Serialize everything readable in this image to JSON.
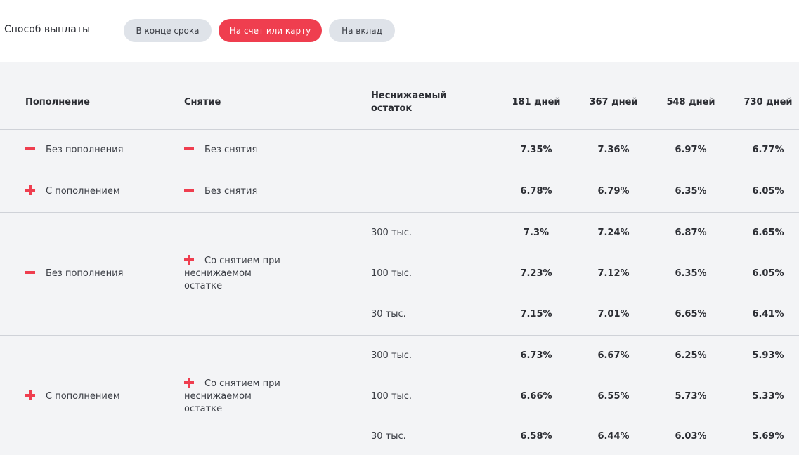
{
  "payout": {
    "label": "Способ выплаты",
    "options": [
      {
        "label": "В конце срока",
        "active": false
      },
      {
        "label": "На счет или карту",
        "active": true
      },
      {
        "label": "На вклад",
        "active": false
      }
    ]
  },
  "colors": {
    "accent": "#ef3e4f",
    "pill_inactive": "#dfe3e9",
    "table_bg": "#f3f4f6"
  },
  "table": {
    "headers": {
      "topup": "Пополнение",
      "withdraw": "Снятие",
      "min_balance_1": "Неснижаемый",
      "min_balance_2": "остаток",
      "terms": [
        "181 дней",
        "367 дней",
        "548 дней",
        "730 дней"
      ]
    },
    "groups": [
      {
        "topup": {
          "icon": "minus-icon",
          "label": "Без пополнения"
        },
        "withdraw": {
          "icon": "minus-icon",
          "label": "Без снятия"
        },
        "rows": [
          {
            "balance": "",
            "rates": [
              "7.35%",
              "7.36%",
              "6.97%",
              "6.77%"
            ]
          }
        ]
      },
      {
        "topup": {
          "icon": "plus-icon",
          "label": "С пополнением"
        },
        "withdraw": {
          "icon": "minus-icon",
          "label": "Без снятия"
        },
        "rows": [
          {
            "balance": "",
            "rates": [
              "6.78%",
              "6.79%",
              "6.35%",
              "6.05%"
            ]
          }
        ]
      },
      {
        "topup": {
          "icon": "minus-icon",
          "label": "Без пополнения"
        },
        "withdraw": {
          "icon": "plus-icon",
          "line1": "Со снятием при",
          "line2": "неснижаемом",
          "line3": "остатке"
        },
        "rows": [
          {
            "balance": "300 тыс.",
            "rates": [
              "7.3%",
              "7.24%",
              "6.87%",
              "6.65%"
            ]
          },
          {
            "balance": "100 тыс.",
            "rates": [
              "7.23%",
              "7.12%",
              "6.35%",
              "6.05%"
            ]
          },
          {
            "balance": "30 тыс.",
            "rates": [
              "7.15%",
              "7.01%",
              "6.65%",
              "6.41%"
            ]
          }
        ]
      },
      {
        "topup": {
          "icon": "plus-icon",
          "label": "С пополнением"
        },
        "withdraw": {
          "icon": "plus-icon",
          "line1": "Со снятием при",
          "line2": "неснижаемом",
          "line3": "остатке"
        },
        "rows": [
          {
            "balance": "300 тыс.",
            "rates": [
              "6.73%",
              "6.67%",
              "6.25%",
              "5.93%"
            ]
          },
          {
            "balance": "100 тыс.",
            "rates": [
              "6.66%",
              "6.55%",
              "5.73%",
              "5.33%"
            ]
          },
          {
            "balance": "30 тыс.",
            "rates": [
              "6.58%",
              "6.44%",
              "6.03%",
              "5.69%"
            ]
          }
        ]
      }
    ]
  }
}
